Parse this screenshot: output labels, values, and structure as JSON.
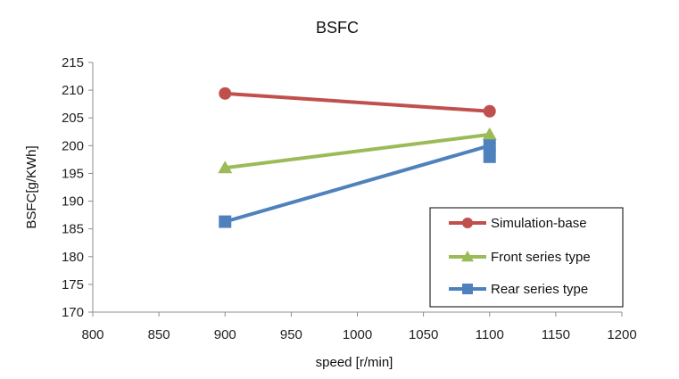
{
  "chart_data": {
    "type": "line",
    "title": "BSFC",
    "xlabel": "speed [r/min]",
    "ylabel": "BSFC[g/KWh]",
    "xlim": [
      800,
      1200
    ],
    "ylim": [
      170,
      215
    ],
    "xticks": [
      800,
      850,
      900,
      950,
      1000,
      1050,
      1100,
      1150,
      1200
    ],
    "yticks": [
      170,
      175,
      180,
      185,
      190,
      195,
      200,
      205,
      210,
      215
    ],
    "grid": false,
    "legend_position": "bottom-right",
    "series": [
      {
        "name": "Simulation-base",
        "color": "#c0504d",
        "marker": "circle",
        "x": [
          900,
          1100
        ],
        "y": [
          209.4,
          206.2
        ]
      },
      {
        "name": "Front series type",
        "color": "#9bbb59",
        "marker": "triangle",
        "x": [
          900,
          1100
        ],
        "y": [
          196,
          202
        ]
      },
      {
        "name": "Rear series type",
        "color": "#4f81bd",
        "marker": "square",
        "x": [
          900,
          1100,
          1100
        ],
        "y": [
          186.3,
          200,
          198
        ]
      }
    ]
  }
}
